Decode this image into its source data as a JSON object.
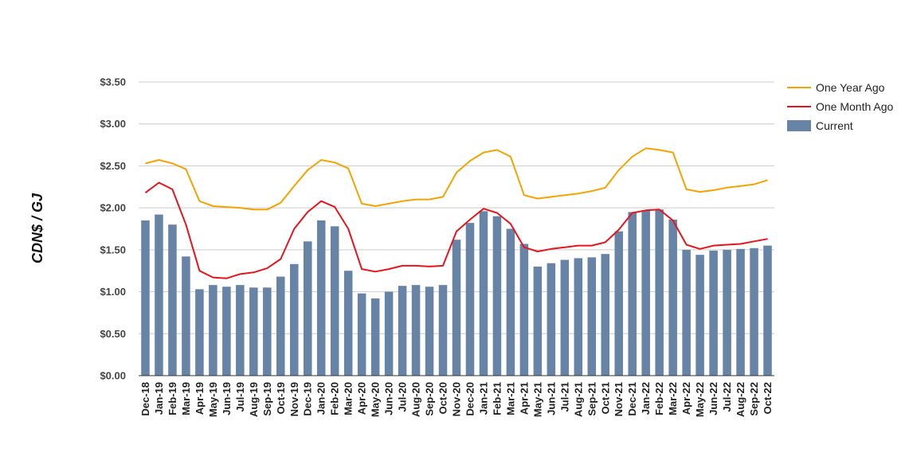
{
  "chart_data": {
    "type": "bar",
    "ylabel": "CDN$ / GJ",
    "ylim": [
      0,
      3.5
    ],
    "yticks": [
      "$0.00",
      "$0.50",
      "$1.00",
      "$1.50",
      "$2.00",
      "$2.50",
      "$3.00",
      "$3.50"
    ],
    "grid": true,
    "legend_position": "top-right",
    "categories": [
      "Dec-18",
      "Jan-19",
      "Feb-19",
      "Mar-19",
      "Apr-19",
      "May-19",
      "Jun-19",
      "Jul-19",
      "Aug-19",
      "Sep-19",
      "Oct-19",
      "Nov-19",
      "Dec-19",
      "Jan-20",
      "Feb-20",
      "Mar-20",
      "Apr-20",
      "May-20",
      "Jun-20",
      "Jul-20",
      "Aug-20",
      "Sep-20",
      "Oct-20",
      "Nov-20",
      "Dec-20",
      "Jan-21",
      "Feb-21",
      "Mar-21",
      "Apr-21",
      "May-21",
      "Jun-21",
      "Jul-21",
      "Aug-21",
      "Sep-21",
      "Oct-21",
      "Nov-21",
      "Dec-21",
      "Jan-22",
      "Feb-22",
      "Mar-22",
      "Apr-22",
      "May-22",
      "Jun-22",
      "Jul-22",
      "Aug-22",
      "Sep-22",
      "Oct-22"
    ],
    "series": [
      {
        "name": "One Year Ago",
        "type": "line",
        "color": "#f5a300",
        "values": [
          2.53,
          2.57,
          2.53,
          2.46,
          2.08,
          2.02,
          2.01,
          2.0,
          1.98,
          1.98,
          2.06,
          2.26,
          2.45,
          2.57,
          2.54,
          2.47,
          2.05,
          2.02,
          2.05,
          2.08,
          2.1,
          2.1,
          2.13,
          2.42,
          2.56,
          2.66,
          2.69,
          2.61,
          2.15,
          2.11,
          2.13,
          2.15,
          2.17,
          2.2,
          2.24,
          2.45,
          2.61,
          2.71,
          2.69,
          2.66,
          2.22,
          2.19,
          2.21,
          2.24,
          2.26,
          2.28,
          2.33
        ]
      },
      {
        "name": "One Month Ago",
        "type": "line",
        "color": "#e8141c",
        "values": [
          2.18,
          2.3,
          2.22,
          1.8,
          1.25,
          1.17,
          1.16,
          1.21,
          1.23,
          1.28,
          1.39,
          1.75,
          1.95,
          2.08,
          2.01,
          1.75,
          1.27,
          1.24,
          1.27,
          1.31,
          1.31,
          1.3,
          1.31,
          1.72,
          1.86,
          1.99,
          1.94,
          1.81,
          1.53,
          1.48,
          1.51,
          1.53,
          1.55,
          1.55,
          1.59,
          1.74,
          1.94,
          1.97,
          1.98,
          1.85,
          1.56,
          1.51,
          1.55,
          1.56,
          1.57,
          1.6,
          1.63
        ]
      },
      {
        "name": "Current",
        "type": "bar",
        "color": "#6783a6",
        "values": [
          1.85,
          1.92,
          1.8,
          1.42,
          1.03,
          1.08,
          1.06,
          1.08,
          1.05,
          1.05,
          1.18,
          1.33,
          1.6,
          1.85,
          1.78,
          1.25,
          0.98,
          0.92,
          1.0,
          1.07,
          1.08,
          1.06,
          1.08,
          1.62,
          1.82,
          1.96,
          1.9,
          1.75,
          1.57,
          1.3,
          1.34,
          1.38,
          1.4,
          1.41,
          1.45,
          1.72,
          1.95,
          1.97,
          1.98,
          1.86,
          1.5,
          1.44,
          1.49,
          1.5,
          1.51,
          1.52,
          1.55
        ]
      }
    ]
  }
}
